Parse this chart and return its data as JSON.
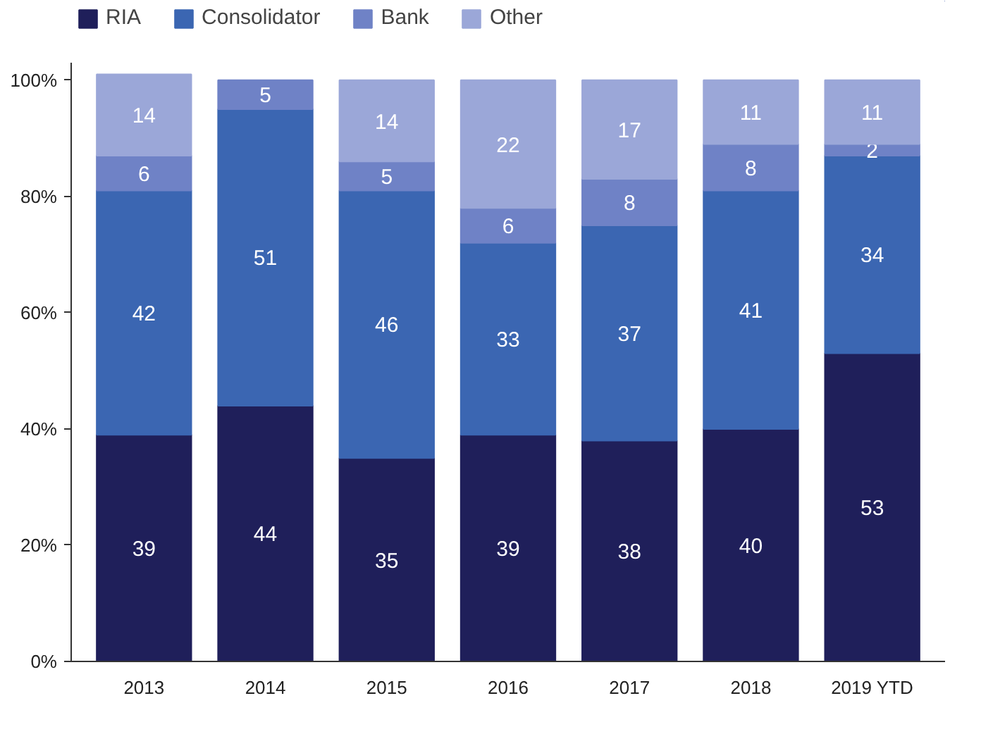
{
  "chart_data": {
    "type": "bar",
    "stacked": true,
    "categories": [
      "2013",
      "2014",
      "2015",
      "2016",
      "2017",
      "2018",
      "2019 YTD"
    ],
    "series": [
      {
        "name": "RIA",
        "color": "#1f1f5a",
        "values": [
          39,
          44,
          35,
          39,
          38,
          40,
          53
        ]
      },
      {
        "name": "Consolidator",
        "color": "#3b66b2",
        "values": [
          42,
          51,
          46,
          33,
          37,
          41,
          34
        ]
      },
      {
        "name": "Bank",
        "color": "#6f82c6",
        "values": [
          6,
          5,
          5,
          6,
          8,
          8,
          2
        ]
      },
      {
        "name": "Other",
        "color": "#9ba7d8",
        "values": [
          14,
          null,
          14,
          22,
          17,
          11,
          11
        ]
      }
    ],
    "ylim": [
      0,
      103
    ],
    "yticks": [
      {
        "value": 0,
        "label": "0%"
      },
      {
        "value": 20,
        "label": "20%"
      },
      {
        "value": 40,
        "label": "40%"
      },
      {
        "value": 60,
        "label": "60%"
      },
      {
        "value": 80,
        "label": "80%"
      },
      {
        "value": 100,
        "label": "100%"
      }
    ],
    "data_labels": true,
    "grid": false,
    "legend": "top left"
  }
}
